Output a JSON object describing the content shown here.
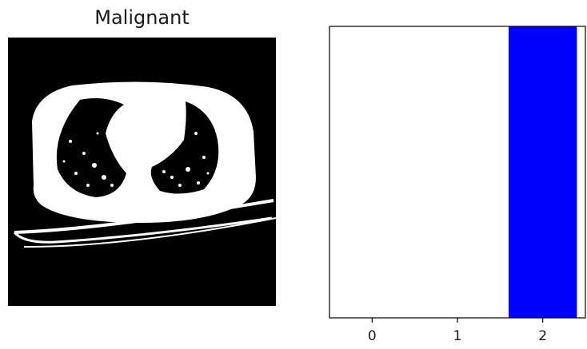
{
  "figure": {
    "image_title": "Malignant"
  },
  "chart_data": {
    "type": "bar",
    "categories": [
      "0",
      "1",
      "2"
    ],
    "values": [
      0,
      0,
      1
    ],
    "bar_color": "#0000ff",
    "xlim": [
      -0.5,
      2.5
    ],
    "ylim": [
      0,
      1
    ],
    "x_ticks": [
      "0",
      "1",
      "2"
    ],
    "y_ticks": [],
    "title": "",
    "xlabel": "",
    "ylabel": "",
    "grid": false
  }
}
